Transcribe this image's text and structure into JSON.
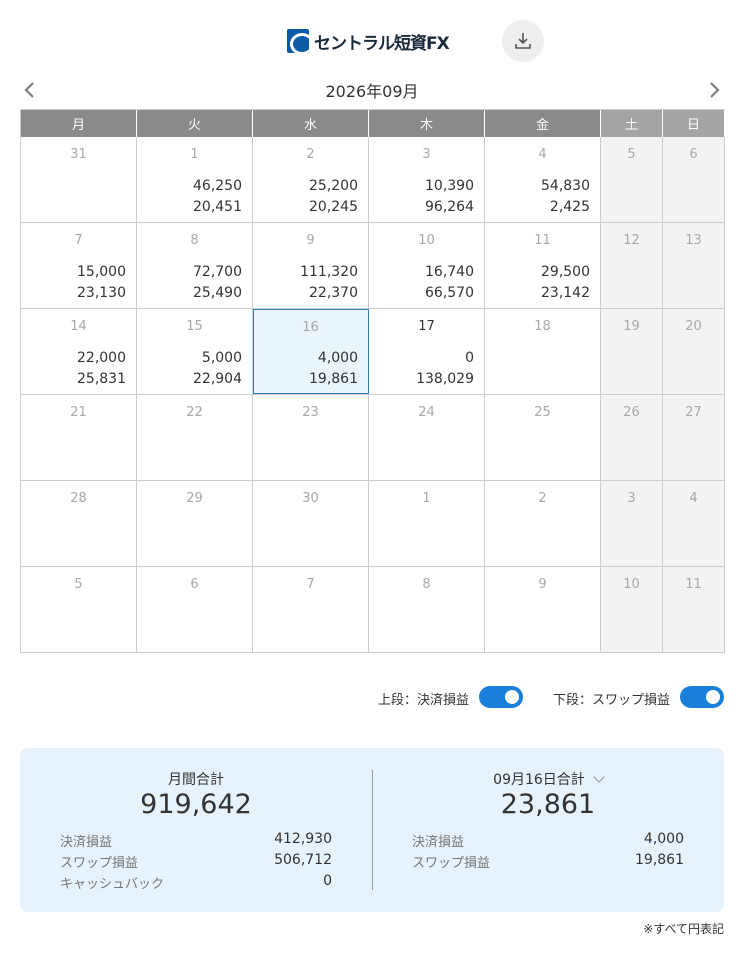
{
  "header": {
    "logo_text": "セントラル短資FX"
  },
  "nav": {
    "month": "2026年09月"
  },
  "weekdays": [
    "月",
    "火",
    "水",
    "木",
    "金",
    "土",
    "日"
  ],
  "weeks": [
    [
      {
        "day": "31",
        "v1": "",
        "v2": ""
      },
      {
        "day": "1",
        "v1": "46,250",
        "v2": "20,451"
      },
      {
        "day": "2",
        "v1": "25,200",
        "v2": "20,245"
      },
      {
        "day": "3",
        "v1": "10,390",
        "v2": "96,264"
      },
      {
        "day": "4",
        "v1": "54,830",
        "v2": "2,425"
      },
      {
        "day": "5",
        "v1": "",
        "v2": ""
      },
      {
        "day": "6",
        "v1": "",
        "v2": ""
      }
    ],
    [
      {
        "day": "7",
        "v1": "15,000",
        "v2": "23,130"
      },
      {
        "day": "8",
        "v1": "72,700",
        "v2": "25,490"
      },
      {
        "day": "9",
        "v1": "111,320",
        "v2": "22,370"
      },
      {
        "day": "10",
        "v1": "16,740",
        "v2": "66,570"
      },
      {
        "day": "11",
        "v1": "29,500",
        "v2": "23,142"
      },
      {
        "day": "12",
        "v1": "",
        "v2": ""
      },
      {
        "day": "13",
        "v1": "",
        "v2": ""
      }
    ],
    [
      {
        "day": "14",
        "v1": "22,000",
        "v2": "25,831"
      },
      {
        "day": "15",
        "v1": "5,000",
        "v2": "22,904"
      },
      {
        "day": "16",
        "v1": "4,000",
        "v2": "19,861"
      },
      {
        "day": "17",
        "v1": "0",
        "v2": "138,029"
      },
      {
        "day": "18",
        "v1": "",
        "v2": ""
      },
      {
        "day": "19",
        "v1": "",
        "v2": ""
      },
      {
        "day": "20",
        "v1": "",
        "v2": ""
      }
    ],
    [
      {
        "day": "21",
        "v1": "",
        "v2": ""
      },
      {
        "day": "22",
        "v1": "",
        "v2": ""
      },
      {
        "day": "23",
        "v1": "",
        "v2": ""
      },
      {
        "day": "24",
        "v1": "",
        "v2": ""
      },
      {
        "day": "25",
        "v1": "",
        "v2": ""
      },
      {
        "day": "26",
        "v1": "",
        "v2": ""
      },
      {
        "day": "27",
        "v1": "",
        "v2": ""
      }
    ],
    [
      {
        "day": "28",
        "v1": "",
        "v2": ""
      },
      {
        "day": "29",
        "v1": "",
        "v2": ""
      },
      {
        "day": "30",
        "v1": "",
        "v2": ""
      },
      {
        "day": "1",
        "v1": "",
        "v2": ""
      },
      {
        "day": "2",
        "v1": "",
        "v2": ""
      },
      {
        "day": "3",
        "v1": "",
        "v2": ""
      },
      {
        "day": "4",
        "v1": "",
        "v2": ""
      }
    ],
    [
      {
        "day": "5",
        "v1": "",
        "v2": ""
      },
      {
        "day": "6",
        "v1": "",
        "v2": ""
      },
      {
        "day": "7",
        "v1": "",
        "v2": ""
      },
      {
        "day": "8",
        "v1": "",
        "v2": ""
      },
      {
        "day": "9",
        "v1": "",
        "v2": ""
      },
      {
        "day": "10",
        "v1": "",
        "v2": ""
      },
      {
        "day": "11",
        "v1": "",
        "v2": ""
      }
    ]
  ],
  "selected_day": "16",
  "today_day": "17",
  "toggles": {
    "upper_label": "上段：決済損益",
    "upper_on": true,
    "lower_label": "下段：スワップ損益",
    "lower_on": true
  },
  "summary": {
    "monthly": {
      "title": "月間合計",
      "total": "919,642",
      "settlement_label": "決済損益",
      "settlement_value": "412,930",
      "swap_label": "スワップ損益",
      "swap_value": "506,712",
      "cashback_label": "キャッシュバック",
      "cashback_value": "0"
    },
    "daily": {
      "title": "09月16日合計",
      "total": "23,861",
      "settlement_label": "決済損益",
      "settlement_value": "4,000",
      "swap_label": "スワップ損益",
      "swap_value": "19,861"
    }
  },
  "note": "※すべて円表記",
  "colors": {
    "header_weekday": "#8a8a8a",
    "header_weekend": "#a4a4a4",
    "toggle_on": "#1a7fd9",
    "summary_bg": "#e6f3fc",
    "selected_border": "#2d7fb8"
  }
}
